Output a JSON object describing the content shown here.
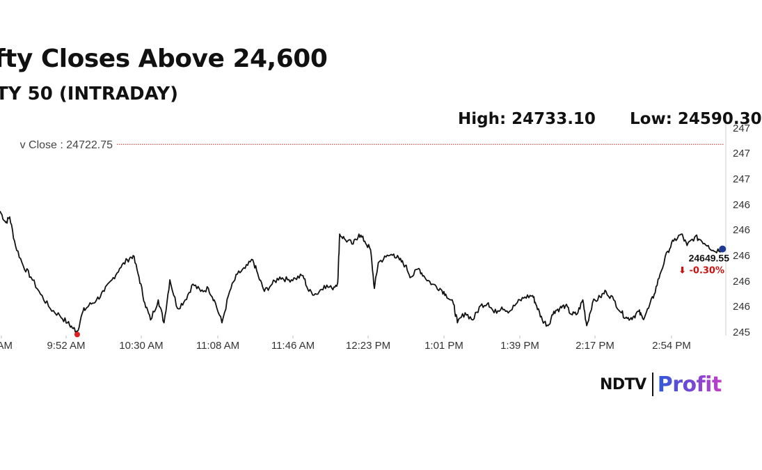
{
  "title": "fty Closes Above 24,600",
  "subtitle": "TY 50 (INTRADAY)",
  "high_text": "High: 24733.10",
  "low_text": "Low: 24590.30",
  "brand": {
    "name": "NDTV",
    "product": "Profit"
  },
  "colors": {
    "line": "#111111",
    "prev_close": "#cc2222",
    "low_marker": "#e02020",
    "last_marker": "#1f3a93",
    "change_negative": "#cc1111"
  },
  "chart_data": {
    "type": "line",
    "title": "fty Closes Above 24,600",
    "xlabel": "",
    "ylabel": "",
    "x_ticks": [
      "AM",
      "9:52 AM",
      "10:30 AM",
      "11:08 AM",
      "11:46 AM",
      "12:23 PM",
      "1:01 PM",
      "1:39 PM",
      "2:17 PM",
      "2:54 PM"
    ],
    "y_ticks": [
      "247",
      "247",
      "247",
      "246",
      "246",
      "246",
      "246",
      "246",
      "245"
    ],
    "ylim": [
      24590,
      24736
    ],
    "grid": false,
    "prev_close": {
      "label": "v Close : 24722.75",
      "value": 24722.75
    },
    "last": {
      "value_text": "24649.55",
      "change_text": "⬇ -0.30%",
      "value": 24649.55,
      "time": "3:29 PM"
    },
    "low_point": {
      "time": "9:55 AM",
      "value": 24590.3
    },
    "series": [
      {
        "values": [
          [
            "9:15 AM",
            24676
          ],
          [
            "9:18 AM",
            24668
          ],
          [
            "9:20 AM",
            24672
          ],
          [
            "9:23 AM",
            24652
          ],
          [
            "9:27 AM",
            24638
          ],
          [
            "9:31 AM",
            24630
          ],
          [
            "9:36 AM",
            24618
          ],
          [
            "9:41 AM",
            24608
          ],
          [
            "9:46 AM",
            24603
          ],
          [
            "9:50 AM",
            24598
          ],
          [
            "9:53 AM",
            24594
          ],
          [
            "9:55 AM",
            24592
          ],
          [
            "9:58 AM",
            24606
          ],
          [
            "10:01 AM",
            24610
          ],
          [
            "10:05 AM",
            24614
          ],
          [
            "10:09 AM",
            24620
          ],
          [
            "10:13 AM",
            24628
          ],
          [
            "10:17 AM",
            24636
          ],
          [
            "10:21 AM",
            24642
          ],
          [
            "10:24 AM",
            24645
          ],
          [
            "10:27 AM",
            24630
          ],
          [
            "10:30 AM",
            24612
          ],
          [
            "10:33 AM",
            24600
          ],
          [
            "10:37 AM",
            24614
          ],
          [
            "10:40 AM",
            24598
          ],
          [
            "10:43 AM",
            24628
          ],
          [
            "10:47 AM",
            24608
          ],
          [
            "10:51 AM",
            24614
          ],
          [
            "10:55 AM",
            24625
          ],
          [
            "10:59 AM",
            24620
          ],
          [
            "11:03 AM",
            24622
          ],
          [
            "11:06 AM",
            24614
          ],
          [
            "11:10 AM",
            24598
          ],
          [
            "11:14 AM",
            24620
          ],
          [
            "11:18 AM",
            24632
          ],
          [
            "11:22 AM",
            24636
          ],
          [
            "11:26 AM",
            24642
          ],
          [
            "11:29 AM",
            24630
          ],
          [
            "11:32 AM",
            24620
          ],
          [
            "11:36 AM",
            24625
          ],
          [
            "11:40 AM",
            24630
          ],
          [
            "11:44 AM",
            24628
          ],
          [
            "11:48 AM",
            24629
          ],
          [
            "11:52 AM",
            24631
          ],
          [
            "11:55 AM",
            24620
          ],
          [
            "11:59 AM",
            24618
          ],
          [
            "12:03 PM",
            24624
          ],
          [
            "12:07 PM",
            24622
          ],
          [
            "12:10 PM",
            24626
          ],
          [
            "12:11 PM",
            24660
          ],
          [
            "12:14 PM",
            24656
          ],
          [
            "12:18 PM",
            24653
          ],
          [
            "12:21 PM",
            24660
          ],
          [
            "12:24 PM",
            24655
          ],
          [
            "12:27 PM",
            24649
          ],
          [
            "12:29 PM",
            24622
          ],
          [
            "12:31 PM",
            24640
          ],
          [
            "12:35 PM",
            24644
          ],
          [
            "12:39 PM",
            24646
          ],
          [
            "12:42 PM",
            24642
          ],
          [
            "12:45 PM",
            24638
          ],
          [
            "12:48 PM",
            24630
          ],
          [
            "12:52 PM",
            24636
          ],
          [
            "12:55 PM",
            24630
          ],
          [
            "12:59 PM",
            24625
          ],
          [
            "1:03 PM",
            24622
          ],
          [
            "1:06 PM",
            24618
          ],
          [
            "1:10 PM",
            24611
          ],
          [
            "1:12 PM",
            24598
          ],
          [
            "1:16 PM",
            24605
          ],
          [
            "1:20 PM",
            24600
          ],
          [
            "1:24 PM",
            24610
          ],
          [
            "1:28 PM",
            24612
          ],
          [
            "1:31 PM",
            24605
          ],
          [
            "1:35 PM",
            24609
          ],
          [
            "1:39 PM",
            24606
          ],
          [
            "1:43 PM",
            24612
          ],
          [
            "1:47 PM",
            24616
          ],
          [
            "1:51 PM",
            24617
          ],
          [
            "1:53 PM",
            24610
          ],
          [
            "1:56 PM",
            24600
          ],
          [
            "1:59 PM",
            24596
          ],
          [
            "2:02 PM",
            24606
          ],
          [
            "2:05 PM",
            24608
          ],
          [
            "2:08 PM",
            24610
          ],
          [
            "2:11 PM",
            24604
          ],
          [
            "2:14 PM",
            24604
          ],
          [
            "2:17 PM",
            24614
          ],
          [
            "2:19 PM",
            24596
          ],
          [
            "2:22 PM",
            24612
          ],
          [
            "2:26 PM",
            24616
          ],
          [
            "2:29 PM",
            24620
          ],
          [
            "2:33 PM",
            24614
          ],
          [
            "2:37 PM",
            24605
          ],
          [
            "2:40 PM",
            24601
          ],
          [
            "2:43 PM",
            24602
          ],
          [
            "2:46 PM",
            24606
          ],
          [
            "2:48 PM",
            24601
          ],
          [
            "2:51 PM",
            24608
          ],
          [
            "2:54 PM",
            24618
          ],
          [
            "2:57 PM",
            24632
          ],
          [
            "3:01 PM",
            24648
          ],
          [
            "3:04 PM",
            24655
          ],
          [
            "3:08 PM",
            24660
          ],
          [
            "3:11 PM",
            24652
          ],
          [
            "3:15 PM",
            24658
          ],
          [
            "3:18 PM",
            24656
          ],
          [
            "3:22 PM",
            24652
          ],
          [
            "3:25 PM",
            24648
          ],
          [
            "3:29 PM",
            24649.55
          ]
        ]
      }
    ]
  }
}
